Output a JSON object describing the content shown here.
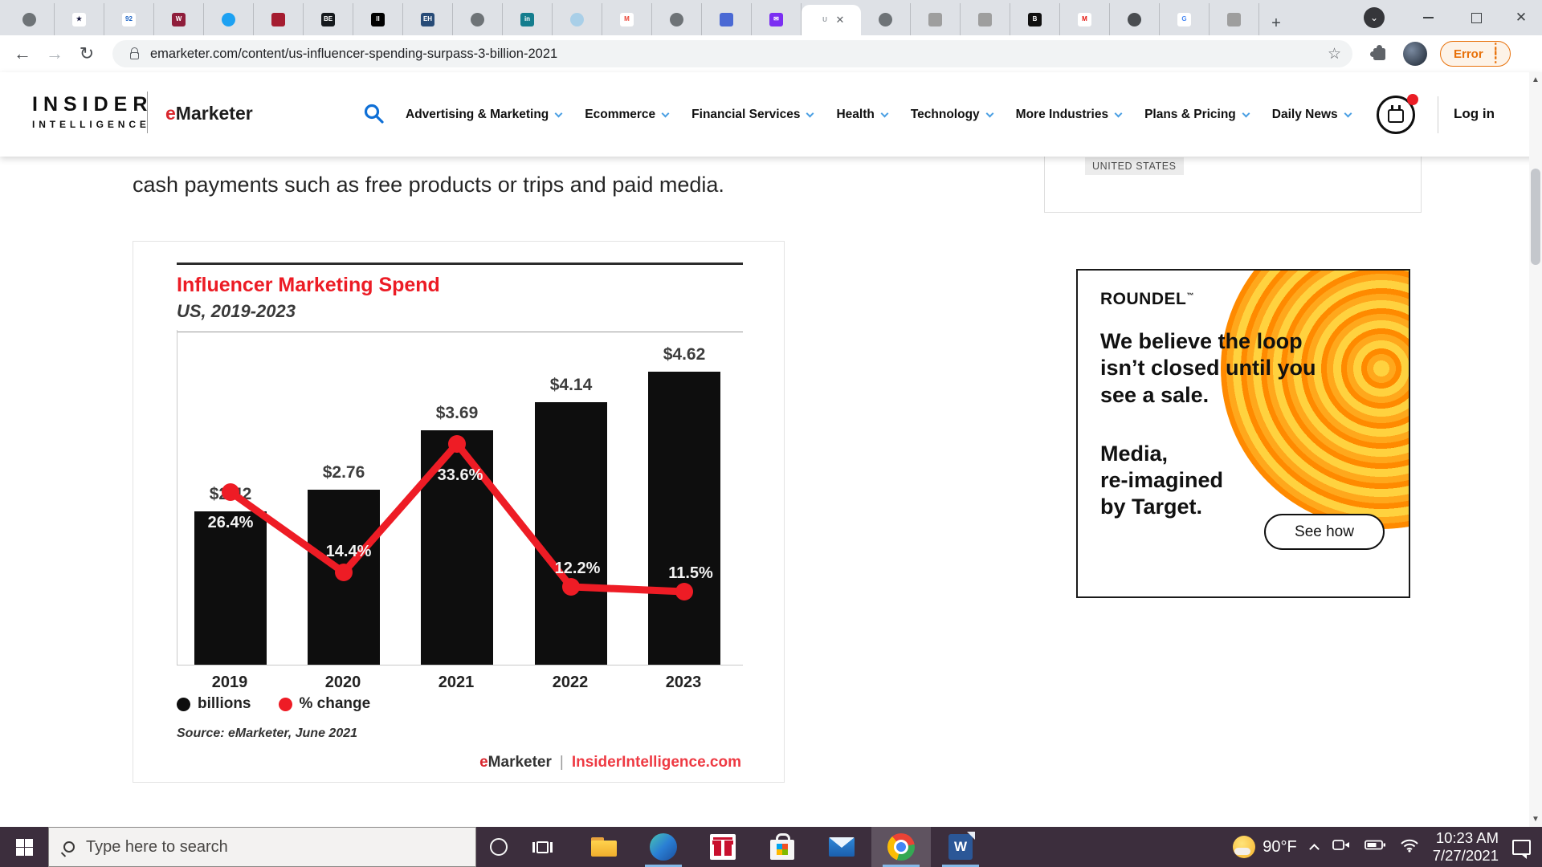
{
  "browser": {
    "url": "emarketer.com/content/us-influencer-spending-surpass-3-billion-2021",
    "error_badge": "Error",
    "new_tab_label": "+",
    "active_index": 16,
    "tabs": [
      {
        "name": "globe-tab",
        "bg": "#6e7377",
        "fg": "#ffffff",
        "text": "",
        "round": true
      },
      {
        "name": "stars-tab",
        "bg": "#ffffff",
        "fg": "#14143c",
        "text": "★",
        "round": false
      },
      {
        "name": "ny92-tab",
        "bg": "#ffffff",
        "fg": "#1b62c4",
        "text": "92",
        "round": false
      },
      {
        "name": "wapo-tab",
        "bg": "#8f1d3b",
        "fg": "#ffffff",
        "text": "W",
        "round": false
      },
      {
        "name": "twitter-tab",
        "bg": "#1da1f2",
        "fg": "#ffffff",
        "text": "",
        "round": true
      },
      {
        "name": "harvard-tab",
        "bg": "#a51c30",
        "fg": "#ffffff",
        "text": "",
        "round": false
      },
      {
        "name": "be-tab",
        "bg": "#15191d",
        "fg": "#ffffff",
        "text": "BE",
        "round": false
      },
      {
        "name": "ii-tab",
        "bg": "#000000",
        "fg": "#ffffff",
        "text": "II",
        "round": false
      },
      {
        "name": "eh-tab",
        "bg": "#274b77",
        "fg": "#ffffff",
        "text": "EH",
        "round": false
      },
      {
        "name": "globe-tab",
        "bg": "#6e7377",
        "fg": "#ffffff",
        "text": "",
        "round": true
      },
      {
        "name": "invest-tab",
        "bg": "#147d8e",
        "fg": "#ffffff",
        "text": "in",
        "round": false
      },
      {
        "name": "who-tab",
        "bg": "#a9cfe8",
        "fg": "#ffffff",
        "text": "",
        "round": true
      },
      {
        "name": "gmail-tab",
        "bg": "#ffffff",
        "fg": "#ea4335",
        "text": "M",
        "round": false
      },
      {
        "name": "globe-tab",
        "bg": "#6e7377",
        "fg": "#ffffff",
        "text": "",
        "round": true
      },
      {
        "name": "doc-tab",
        "bg": "#4a69d4",
        "fg": "#ffffff",
        "text": "",
        "round": false
      },
      {
        "name": "envelope-tab",
        "bg": "#7b2ff2",
        "fg": "#ffffff",
        "text": "✉",
        "round": false
      },
      {
        "name": "active-tab",
        "bg": "#ffffff",
        "fg": "#9aa0a6",
        "text": "U",
        "round": false
      },
      {
        "name": "globe-tab",
        "bg": "#6e7377",
        "fg": "#ffffff",
        "text": "",
        "round": true
      },
      {
        "name": "portrait-tab",
        "bg": "#9e9e9e",
        "fg": "#5a5a5a",
        "text": "",
        "round": false
      },
      {
        "name": "portrait-tab",
        "bg": "#9e9e9e",
        "fg": "#5a5a5a",
        "text": "",
        "round": false
      },
      {
        "name": "bloomberg-tab",
        "bg": "#101010",
        "fg": "#ffffff",
        "text": "B",
        "round": false
      },
      {
        "name": "m-tab",
        "bg": "#ffffff",
        "fg": "#e3120b",
        "text": "M",
        "round": false
      },
      {
        "name": "swirl-tab",
        "bg": "#4a4d51",
        "fg": "#ffffff",
        "text": "",
        "round": true
      },
      {
        "name": "google-tab",
        "bg": "#ffffff",
        "fg": "#4285f4",
        "text": "G",
        "round": false
      },
      {
        "name": "portrait-tab",
        "bg": "#9e9e9e",
        "fg": "#5a5a5a",
        "text": "",
        "round": false
      }
    ]
  },
  "site_header": {
    "logo_line1": "INSIDER",
    "logo_line2": "INTELLIGENCE",
    "brand_e": "e",
    "brand_rest": "Marketer",
    "login": "Log in",
    "nav": [
      {
        "label": "Advertising & Marketing"
      },
      {
        "label": "Ecommerce"
      },
      {
        "label": "Financial Services"
      },
      {
        "label": "Health"
      },
      {
        "label": "Technology"
      },
      {
        "label": "More Industries"
      },
      {
        "label": "Plans & Pricing"
      },
      {
        "label": "Daily News"
      }
    ]
  },
  "article": {
    "paragraph": "cash payments such as free products or trips and paid media.",
    "region_tag": "UNITED STATES"
  },
  "chart_data": {
    "type": "bar",
    "title": "Influencer Marketing Spend",
    "subtitle": "US, 2019-2023",
    "categories": [
      "2019",
      "2020",
      "2021",
      "2022",
      "2023"
    ],
    "series": [
      {
        "name": "billions",
        "type": "bar",
        "color": "#0e0e0e",
        "values": [
          2.42,
          2.76,
          3.69,
          4.14,
          4.62
        ],
        "labels": [
          "$2.42",
          "$2.76",
          "$3.69",
          "$4.14",
          "$4.62"
        ]
      },
      {
        "name": "% change",
        "type": "line",
        "color": "#ee1c25",
        "values": [
          26.4,
          14.4,
          33.6,
          12.2,
          11.5
        ],
        "labels": [
          "26.4%",
          "14.4%",
          "33.6%",
          "12.2%",
          "11.5%"
        ]
      }
    ],
    "legend": [
      {
        "label": "billions",
        "color": "#0e0e0e"
      },
      {
        "label": "% change",
        "color": "#ee1c25"
      }
    ],
    "ylim_dollars": [
      0,
      5.3
    ],
    "ylim_percent": [
      0,
      50
    ],
    "grid": false,
    "source": "Source: eMarketer, June 2021",
    "footer_e": "e",
    "footer_rest": "Marketer",
    "footer_divider": "|",
    "footer_site": "InsiderIntelligence.com"
  },
  "ad": {
    "brand": "ROUNDEL",
    "tm": "™",
    "headline_lines": [
      "We believe the loop",
      "isn’t closed until you",
      "see a sale."
    ],
    "sub_lines": [
      "Media,",
      "re-imagined",
      "by Target."
    ],
    "cta": "See how"
  },
  "taskbar": {
    "search_placeholder": "Type here to search",
    "icons": [
      {
        "name": "file-explorer-icon",
        "cls": "ic-explorer",
        "running": false,
        "active": false
      },
      {
        "name": "edge-icon",
        "cls": "ic-edge",
        "running": true,
        "active": false
      },
      {
        "name": "gift-icon",
        "cls": "ic-gift",
        "running": false,
        "active": false
      },
      {
        "name": "microsoft-store-icon",
        "cls": "ic-store",
        "running": false,
        "active": false
      },
      {
        "name": "mail-icon",
        "cls": "ic-mail",
        "running": false,
        "active": false
      },
      {
        "name": "chrome-icon",
        "cls": "ic-chrome",
        "running": true,
        "active": true
      },
      {
        "name": "word-icon",
        "cls": "ic-word",
        "running": true,
        "active": false
      }
    ],
    "tray": {
      "temp": "90°F",
      "time": "10:23 AM",
      "date": "7/27/2021"
    }
  }
}
